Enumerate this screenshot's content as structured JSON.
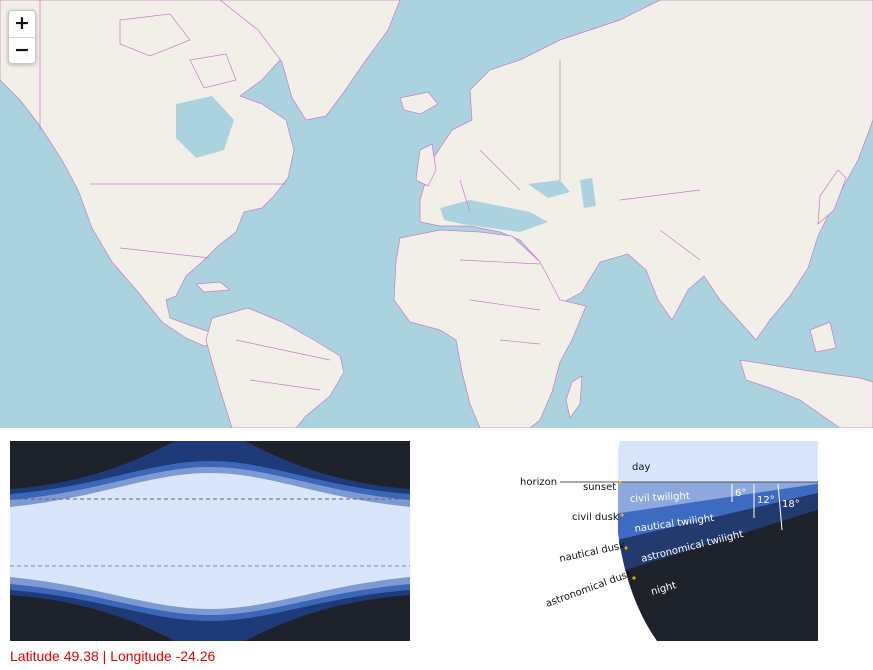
{
  "map": {
    "zoom_in_label": "+",
    "zoom_out_label": "−",
    "colors": {
      "water": "#aad3df",
      "land": "#f2efe9",
      "borders": "#c77dc7"
    }
  },
  "daylength_chart": {
    "colors": {
      "night": "#1e222b",
      "astronomical": "#1e3a78",
      "nautical": "#3b67b8",
      "civil": "#7d9ad3",
      "day": "#d8e5fb"
    }
  },
  "twilight_diagram": {
    "labels": {
      "horizon": "horizon",
      "sunset": "sunset",
      "civil_dusk": "civil dusk",
      "nautical_dusk": "nautical dusk",
      "astronomical_dusk": "astronomical dusk",
      "day": "day",
      "civil_twilight": "civil twilight",
      "nautical_twilight": "nautical twilight",
      "astronomical_twilight": "astronomical twilight",
      "night": "night",
      "deg6": "6°",
      "deg12": "12°",
      "deg18": "18°"
    }
  },
  "coordinates": {
    "latitude_label": "Latitude",
    "latitude": "49.38",
    "separator": "|",
    "longitude_label": "Longitude",
    "longitude": "-24.26"
  }
}
